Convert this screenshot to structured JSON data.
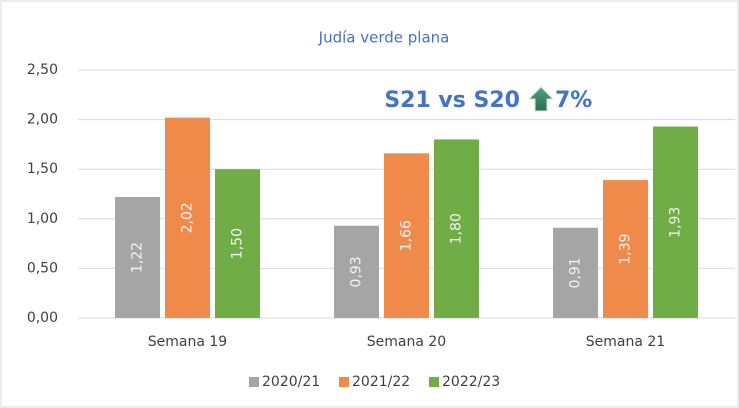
{
  "chart_data": {
    "type": "bar",
    "title": "Judía verde plana",
    "annotation": {
      "text": "S21 vs S20",
      "change": "7%"
    },
    "categories": [
      "Semana 19",
      "Semana 20",
      "Semana 21"
    ],
    "series": [
      {
        "name": "2020/21",
        "color": "#a5a5a5",
        "values": [
          1.22,
          0.93,
          0.91
        ],
        "value_labels": [
          "1,22",
          "0,93",
          "0,91"
        ]
      },
      {
        "name": "2021/22",
        "color": "#f08a4b",
        "values": [
          2.02,
          1.66,
          1.39
        ],
        "value_labels": [
          "2,02",
          "1,66",
          "1,39"
        ]
      },
      {
        "name": "2022/23",
        "color": "#70ad47",
        "values": [
          1.5,
          1.8,
          1.93
        ],
        "value_labels": [
          "1,50",
          "1,80",
          "1,93"
        ]
      }
    ],
    "ylim": [
      0,
      2.5
    ],
    "yticks": [
      {
        "value": 0,
        "label": "0,00"
      },
      {
        "value": 0.5,
        "label": "0,50"
      },
      {
        "value": 1,
        "label": "1,00"
      },
      {
        "value": 1.5,
        "label": "1,50"
      },
      {
        "value": 2,
        "label": "2,00"
      },
      {
        "value": 2.5,
        "label": "2,50"
      }
    ],
    "grid": true,
    "legend": "bottom"
  }
}
